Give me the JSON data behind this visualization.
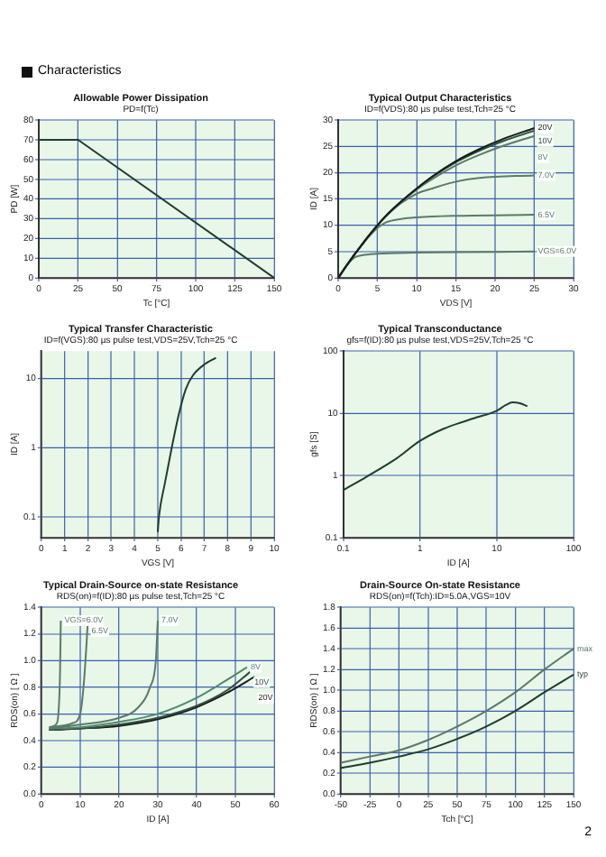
{
  "chart_data": [
    {
      "type": "other",
      "annotations": [
        "Characteristics",
        "2"
      ]
    },
    {
      "type": "line",
      "title": "Allowable Power Dissipation",
      "subtitle": "PD=f(Tc)",
      "xlabel": "Tc [°C]",
      "ylabel": "PD [W]",
      "xlim": [
        0,
        150
      ],
      "xticks": [
        0,
        25,
        50,
        75,
        100,
        125,
        150
      ],
      "ylim": [
        0,
        80
      ],
      "yticks": [
        0,
        10,
        20,
        30,
        40,
        50,
        60,
        70,
        80
      ],
      "grid": true,
      "marker": "none",
      "series": [
        {
          "color": "#1f3d2e",
          "x": [
            0,
            25,
            150
          ],
          "values": [
            70,
            70,
            0
          ]
        }
      ]
    },
    {
      "type": "line",
      "title": "Typical Output Characteristics",
      "subtitle": "ID=f(VDS):80 µs pulse test,Tch=25 °C",
      "xlabel": "VDS [V]",
      "ylabel": "ID [A]",
      "xlim": [
        0,
        30
      ],
      "xticks": [
        0,
        5,
        10,
        15,
        20,
        25,
        30
      ],
      "ylim": [
        0,
        30
      ],
      "yticks": [
        0,
        5,
        10,
        15,
        20,
        25,
        30
      ],
      "grid": true,
      "marker": "none",
      "series": [
        {
          "name": "20V",
          "color": "#1a1a1a",
          "x": [
            0,
            1,
            2,
            3,
            4,
            5,
            6,
            8,
            10,
            12,
            15,
            18,
            21,
            25
          ],
          "values": [
            0,
            2.2,
            4.3,
            6.3,
            8.2,
            10,
            11.7,
            14.5,
            17,
            19.3,
            22.2,
            24.5,
            26.4,
            28.5
          ]
        },
        {
          "name": "10V",
          "color": "#2e4f3f",
          "x": [
            0,
            1,
            2,
            3,
            4,
            5,
            6,
            8,
            10,
            12,
            15,
            18,
            21,
            25
          ],
          "values": [
            0,
            2.2,
            4.3,
            6.3,
            8.2,
            10,
            11.7,
            14.5,
            17,
            19.2,
            22,
            24.2,
            26,
            28
          ]
        },
        {
          "name": "8V",
          "color": "#5b7a6a",
          "x": [
            0,
            1,
            2,
            3,
            4,
            5,
            6,
            8,
            10,
            12,
            15,
            18,
            21,
            25
          ],
          "values": [
            0,
            2.2,
            4.3,
            6.3,
            8.2,
            10,
            11.6,
            14.4,
            16.8,
            18.8,
            21.4,
            23.4,
            25.1,
            27
          ]
        },
        {
          "name": "7.0V",
          "color": "#5b7a6a",
          "x": [
            0,
            1,
            2,
            3,
            4,
            5,
            6,
            8,
            10,
            12,
            15,
            18,
            25
          ],
          "values": [
            0,
            2.2,
            4.3,
            6.3,
            8.2,
            10,
            11.6,
            14.2,
            16,
            17,
            18.3,
            19,
            19.5
          ]
        },
        {
          "name": "6.5V",
          "color": "#5b7a6a",
          "x": [
            0,
            1,
            2,
            3,
            4,
            5,
            6,
            8,
            10,
            15,
            25
          ],
          "values": [
            0,
            2.2,
            4.3,
            6.2,
            8,
            9.5,
            10.5,
            11.2,
            11.5,
            11.8,
            12
          ]
        },
        {
          "name": "VGS=6.0V",
          "color": "#5b7a6a",
          "x": [
            0,
            1,
            2,
            3,
            5,
            10,
            25
          ],
          "values": [
            0,
            2.2,
            3.8,
            4.3,
            4.6,
            4.8,
            5
          ]
        }
      ]
    },
    {
      "type": "line",
      "title": "Typical Transfer Characteristic",
      "subtitle": "ID=f(VGS):80 µs pulse test,VDS=25V,Tch=25 °C",
      "xlabel": "VGS [V]",
      "ylabel": "ID [A]",
      "log": "y",
      "xlim": [
        0,
        10
      ],
      "xticks": [
        0,
        1,
        2,
        3,
        4,
        5,
        6,
        7,
        8,
        9,
        10
      ],
      "ylim": [
        0.05,
        25
      ],
      "yticks": [
        0.1,
        1,
        10
      ],
      "grid": true,
      "marker": "none",
      "series": [
        {
          "color": "#1f3d2e",
          "x": [
            5.0,
            5.05,
            5.3,
            5.6,
            5.9,
            6.2,
            6.5,
            7.0,
            7.5
          ],
          "values": [
            0.06,
            0.1,
            0.3,
            1,
            3,
            7,
            11,
            16,
            20
          ]
        }
      ]
    },
    {
      "type": "line",
      "title": "Typical Transconductance",
      "subtitle": "gfs=f(ID):80 µs pulse test,VDS=25V,Tch=25 °C",
      "xlabel": "ID [A]",
      "ylabel": "gfs [S]",
      "log": "xy",
      "xlim": [
        0.1,
        100
      ],
      "xticks": [
        0.1,
        1,
        10,
        100
      ],
      "ylim": [
        0.1,
        100
      ],
      "yticks": [
        0.1,
        1,
        10,
        100
      ],
      "grid": true,
      "marker": "none",
      "series": [
        {
          "color": "#1f3d2e",
          "x": [
            0.1,
            0.2,
            0.5,
            1,
            2,
            5,
            10,
            13,
            16,
            20,
            25
          ],
          "values": [
            0.58,
            0.95,
            1.9,
            3.6,
            5.6,
            8.3,
            11,
            13.5,
            15,
            14.5,
            13
          ]
        }
      ]
    },
    {
      "type": "line",
      "title": "Typical Drain-Source on-state Resistance",
      "subtitle": "RDS(on)=f(ID):80 µs pulse test,Tch=25 °C",
      "xlabel": "ID [A]",
      "ylabel": "RDS(on) [ Ω ]",
      "xlim": [
        0,
        60
      ],
      "xticks": [
        0,
        10,
        20,
        30,
        40,
        50,
        60
      ],
      "ylim": [
        0,
        1.4
      ],
      "yticks": [
        {
          "value": 0,
          "label": "0.0"
        },
        {
          "value": 0.2,
          "label": "0.2"
        },
        {
          "value": 0.4,
          "label": "0.4"
        },
        {
          "value": 0.6,
          "label": "0.6"
        },
        {
          "value": 0.8,
          "label": "0.8"
        },
        {
          "value": 1,
          "label": "1.0"
        },
        {
          "value": 1.2,
          "label": "1.2"
        },
        {
          "value": 1.4,
          "label": "1.4"
        }
      ],
      "grid": true,
      "marker": "none",
      "series": [
        {
          "name": "VGS=6.0V",
          "color": "#5b7a6a",
          "x": [
            2,
            4,
            4.5,
            4.8,
            5
          ],
          "values": [
            0.5,
            0.53,
            0.65,
            0.9,
            1.3
          ]
        },
        {
          "name": "6.5V",
          "color": "#5b7a6a",
          "x": [
            2,
            8,
            10,
            11,
            12
          ],
          "values": [
            0.5,
            0.53,
            0.6,
            0.85,
            1.3
          ]
        },
        {
          "name": "7.0V",
          "color": "#5b7a6a",
          "x": [
            2,
            10,
            20,
            25,
            28,
            29.5,
            30
          ],
          "values": [
            0.49,
            0.52,
            0.57,
            0.65,
            0.8,
            1.0,
            1.3
          ]
        },
        {
          "name": "8V",
          "color": "#4f8a6c",
          "x": [
            2,
            10,
            20,
            30,
            40,
            47,
            53
          ],
          "values": [
            0.49,
            0.5,
            0.54,
            0.6,
            0.72,
            0.84,
            0.95
          ]
        },
        {
          "name": "10V",
          "color": "#2e4f3f",
          "x": [
            2,
            10,
            20,
            30,
            40,
            48,
            54
          ],
          "values": [
            0.48,
            0.49,
            0.52,
            0.57,
            0.66,
            0.78,
            0.92
          ]
        },
        {
          "name": "20V",
          "color": "#1a1a1a",
          "x": [
            2,
            10,
            20,
            30,
            40,
            48,
            55
          ],
          "values": [
            0.48,
            0.49,
            0.51,
            0.56,
            0.65,
            0.76,
            0.88
          ]
        }
      ]
    },
    {
      "type": "line",
      "title": "Drain-Source On-state Resistance",
      "subtitle": "RDS(on)=f(Tch):ID=5.0A,VGS=10V",
      "xlabel": "Tch [°C]",
      "ylabel": "RDS(on) [ Ω ]",
      "xlim": [
        -50,
        150
      ],
      "xticks": [
        -50,
        -25,
        0,
        25,
        50,
        75,
        100,
        125,
        150
      ],
      "ylim": [
        0,
        1.8
      ],
      "yticks": [
        {
          "value": 0,
          "label": "0.0"
        },
        {
          "value": 0.2,
          "label": "0.2"
        },
        {
          "value": 0.4,
          "label": "0.4"
        },
        {
          "value": 0.6,
          "label": "0.6"
        },
        {
          "value": 0.8,
          "label": "0.8"
        },
        {
          "value": 1,
          "label": "1.0"
        },
        {
          "value": 1.2,
          "label": "1.2"
        },
        {
          "value": 1.4,
          "label": "1.4"
        },
        {
          "value": 1.6,
          "label": "1.6"
        },
        {
          "value": 1.8,
          "label": "1.8"
        }
      ],
      "grid": true,
      "marker": "none",
      "series": [
        {
          "name": "max",
          "color": "#5b7a6a",
          "x": [
            -50,
            -25,
            0,
            25,
            50,
            75,
            100,
            125,
            150
          ],
          "values": [
            0.3,
            0.36,
            0.42,
            0.52,
            0.65,
            0.8,
            0.98,
            1.2,
            1.4
          ]
        },
        {
          "name": "typ",
          "color": "#1f3d2e",
          "x": [
            -50,
            -25,
            0,
            25,
            50,
            75,
            100,
            125,
            150
          ],
          "values": [
            0.25,
            0.3,
            0.36,
            0.43,
            0.53,
            0.65,
            0.8,
            0.98,
            1.15
          ]
        }
      ]
    }
  ]
}
